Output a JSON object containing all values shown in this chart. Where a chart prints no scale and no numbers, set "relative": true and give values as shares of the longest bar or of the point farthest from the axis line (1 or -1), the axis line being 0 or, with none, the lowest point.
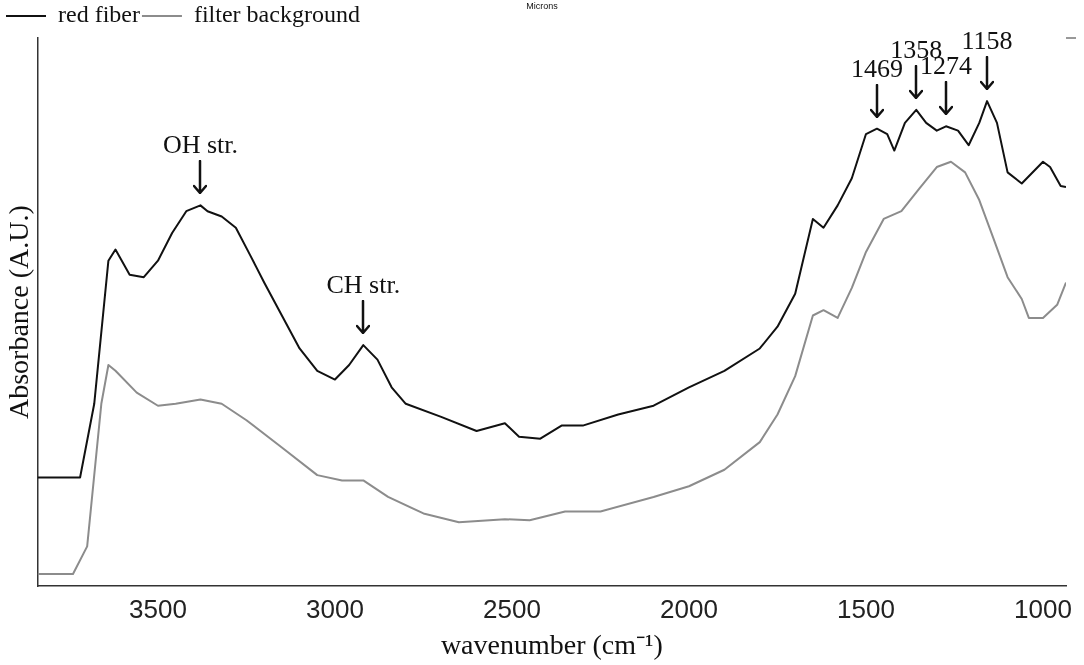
{
  "chart_data": {
    "type": "line",
    "relative": true,
    "xlabel": "wavenumber (cm⁻¹)",
    "ylabel": "Absorbance (A.U.)",
    "xlim": [
      3840,
      935
    ],
    "xticks": [
      3500,
      3000,
      2500,
      2000,
      1500,
      1000
    ],
    "grid": false,
    "legend": "top left",
    "marker": "none",
    "line_style": "solid",
    "annotations": [
      "Microns",
      {
        "text": "OH str.",
        "x": 3380,
        "y": 0.785
      },
      {
        "text": "CH str.",
        "x": 2920,
        "y": 0.497
      },
      {
        "text": "1469",
        "x": 1469,
        "y": 0.943
      },
      {
        "text": "1358",
        "x": 1358,
        "y": 0.982
      },
      {
        "text": "1274",
        "x": 1274,
        "y": 0.948
      },
      {
        "text": "1158",
        "x": 1158,
        "y": 1
      }
    ],
    "series": [
      {
        "name": "red fiber",
        "color": "#111111",
        "x": [
          3840,
          3720,
          3680,
          3640,
          3620,
          3580,
          3540,
          3500,
          3460,
          3420,
          3380,
          3360,
          3320,
          3280,
          3240,
          3200,
          3150,
          3100,
          3050,
          3000,
          2960,
          2920,
          2880,
          2840,
          2800,
          2700,
          2600,
          2520,
          2480,
          2420,
          2360,
          2300,
          2200,
          2100,
          2000,
          1900,
          1800,
          1750,
          1700,
          1650,
          1620,
          1580,
          1540,
          1500,
          1469,
          1440,
          1420,
          1390,
          1358,
          1330,
          1300,
          1274,
          1240,
          1210,
          1180,
          1158,
          1130,
          1100,
          1060,
          1000,
          980,
          950,
          935
        ],
        "values": [
          0.224,
          0.224,
          0.376,
          0.671,
          0.694,
          0.642,
          0.637,
          0.671,
          0.728,
          0.773,
          0.785,
          0.773,
          0.762,
          0.739,
          0.683,
          0.626,
          0.558,
          0.49,
          0.444,
          0.426,
          0.456,
          0.497,
          0.467,
          0.41,
          0.376,
          0.349,
          0.32,
          0.336,
          0.308,
          0.304,
          0.331,
          0.331,
          0.354,
          0.372,
          0.41,
          0.444,
          0.49,
          0.535,
          0.603,
          0.757,
          0.739,
          0.785,
          0.841,
          0.932,
          0.943,
          0.932,
          0.898,
          0.955,
          0.982,
          0.955,
          0.939,
          0.948,
          0.939,
          0.909,
          0.955,
          1,
          0.955,
          0.853,
          0.83,
          0.875,
          0.864,
          0.825,
          0.823
        ]
      },
      {
        "name": "filter background",
        "color": "#8c8c8c",
        "x": [
          3840,
          3740,
          3700,
          3660,
          3640,
          3620,
          3560,
          3500,
          3450,
          3380,
          3320,
          3250,
          3150,
          3050,
          2980,
          2920,
          2850,
          2750,
          2650,
          2520,
          2450,
          2350,
          2250,
          2100,
          2000,
          1900,
          1800,
          1750,
          1700,
          1650,
          1620,
          1580,
          1540,
          1500,
          1450,
          1400,
          1350,
          1300,
          1260,
          1220,
          1180,
          1140,
          1100,
          1060,
          1040,
          1000,
          960,
          935
        ],
        "values": [
          0.025,
          0.025,
          0.082,
          0.376,
          0.456,
          0.444,
          0.399,
          0.372,
          0.376,
          0.385,
          0.376,
          0.342,
          0.286,
          0.229,
          0.218,
          0.218,
          0.184,
          0.15,
          0.132,
          0.138,
          0.136,
          0.154,
          0.154,
          0.184,
          0.206,
          0.24,
          0.297,
          0.354,
          0.433,
          0.558,
          0.569,
          0.553,
          0.615,
          0.689,
          0.757,
          0.773,
          0.819,
          0.864,
          0.875,
          0.853,
          0.796,
          0.717,
          0.637,
          0.592,
          0.553,
          0.553,
          0.58,
          0.626
        ]
      }
    ]
  }
}
